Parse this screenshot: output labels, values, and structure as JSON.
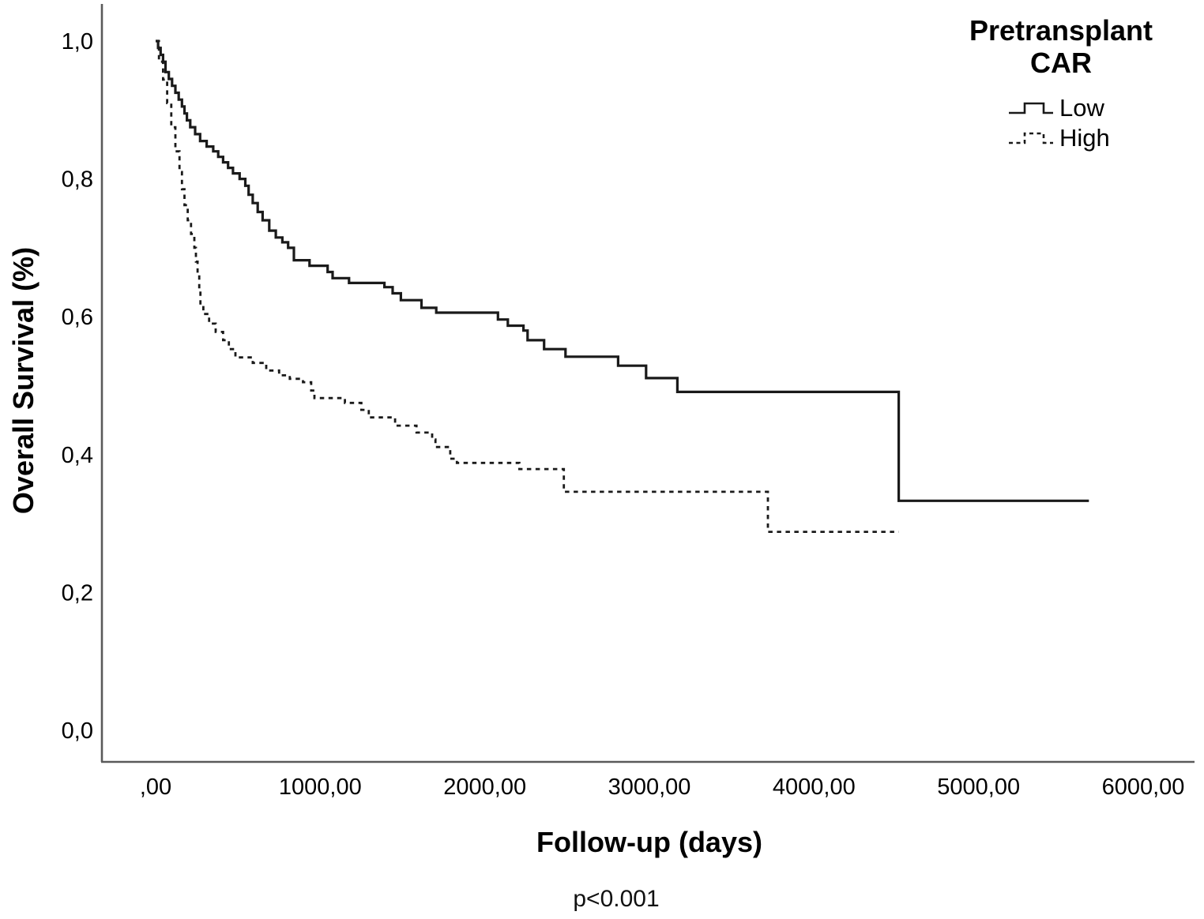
{
  "figure": {
    "background": "#ffffff",
    "axis_color": "#5a5a5a",
    "curve_color": "#1a1a1a",
    "legend": {
      "title_line1": "Pretransplant",
      "title_line2": "CAR"
    }
  },
  "chart_data": {
    "type": "line",
    "subtype": "kaplan_meier_step",
    "title": "",
    "xlabel": "Follow-up (days)",
    "ylabel": "Overall Survival (%)",
    "annotation": "p<0.001",
    "xlim": [
      0,
      6000
    ],
    "ylim": [
      0.0,
      1.0
    ],
    "grid": false,
    "legend_position": "top-right",
    "legend_title": "Pretransplant CAR",
    "x_ticks": {
      "values": [
        0,
        1000,
        2000,
        3000,
        4000,
        5000,
        6000
      ],
      "labels": [
        ",00",
        "1000,00",
        "2000,00",
        "3000,00",
        "4000,00",
        "5000,00",
        "6000,00"
      ]
    },
    "y_ticks": {
      "values": [
        0.0,
        0.2,
        0.4,
        0.6,
        0.8,
        1.0
      ],
      "labels": [
        "0,0",
        "0,2",
        "0,4",
        "0,6",
        "0,8",
        "1,0"
      ]
    },
    "series": [
      {
        "name": "Low",
        "line_style": "solid",
        "color": "#1a1a1a",
        "end_day": 5670,
        "points": [
          [
            0,
            1.0
          ],
          [
            15,
            0.99
          ],
          [
            30,
            0.98
          ],
          [
            45,
            0.97
          ],
          [
            60,
            0.955
          ],
          [
            80,
            0.945
          ],
          [
            100,
            0.935
          ],
          [
            120,
            0.925
          ],
          [
            140,
            0.915
          ],
          [
            160,
            0.905
          ],
          [
            175,
            0.895
          ],
          [
            190,
            0.885
          ],
          [
            210,
            0.875
          ],
          [
            240,
            0.865
          ],
          [
            270,
            0.855
          ],
          [
            310,
            0.847
          ],
          [
            350,
            0.84
          ],
          [
            380,
            0.832
          ],
          [
            410,
            0.824
          ],
          [
            440,
            0.816
          ],
          [
            470,
            0.808
          ],
          [
            510,
            0.8
          ],
          [
            545,
            0.79
          ],
          [
            565,
            0.777
          ],
          [
            590,
            0.765
          ],
          [
            620,
            0.752
          ],
          [
            650,
            0.74
          ],
          [
            690,
            0.725
          ],
          [
            730,
            0.715
          ],
          [
            770,
            0.708
          ],
          [
            805,
            0.7
          ],
          [
            840,
            0.682
          ],
          [
            935,
            0.674
          ],
          [
            1045,
            0.665
          ],
          [
            1075,
            0.656
          ],
          [
            1175,
            0.649
          ],
          [
            1390,
            0.643
          ],
          [
            1440,
            0.634
          ],
          [
            1490,
            0.624
          ],
          [
            1615,
            0.613
          ],
          [
            1705,
            0.606
          ],
          [
            2080,
            0.596
          ],
          [
            2140,
            0.587
          ],
          [
            2235,
            0.58
          ],
          [
            2260,
            0.566
          ],
          [
            2360,
            0.553
          ],
          [
            2490,
            0.542
          ],
          [
            2810,
            0.529
          ],
          [
            2980,
            0.511
          ],
          [
            3170,
            0.491
          ],
          [
            4515,
            0.333
          ]
        ]
      },
      {
        "name": "High",
        "line_style": "dashed",
        "color": "#1a1a1a",
        "end_day": 4515,
        "points": [
          [
            0,
            1.0
          ],
          [
            20,
            0.97
          ],
          [
            45,
            0.944
          ],
          [
            70,
            0.91
          ],
          [
            95,
            0.875
          ],
          [
            120,
            0.84
          ],
          [
            145,
            0.81
          ],
          [
            160,
            0.785
          ],
          [
            175,
            0.762
          ],
          [
            195,
            0.74
          ],
          [
            215,
            0.72
          ],
          [
            235,
            0.7
          ],
          [
            245,
            0.68
          ],
          [
            255,
            0.661
          ],
          [
            265,
            0.64
          ],
          [
            272,
            0.617
          ],
          [
            290,
            0.604
          ],
          [
            325,
            0.59
          ],
          [
            365,
            0.578
          ],
          [
            410,
            0.566
          ],
          [
            445,
            0.553
          ],
          [
            485,
            0.541
          ],
          [
            590,
            0.533
          ],
          [
            672,
            0.522
          ],
          [
            750,
            0.515
          ],
          [
            815,
            0.51
          ],
          [
            895,
            0.505
          ],
          [
            945,
            0.493
          ],
          [
            965,
            0.482
          ],
          [
            1150,
            0.475
          ],
          [
            1250,
            0.465
          ],
          [
            1295,
            0.454
          ],
          [
            1455,
            0.442
          ],
          [
            1585,
            0.432
          ],
          [
            1680,
            0.422
          ],
          [
            1700,
            0.411
          ],
          [
            1790,
            0.394
          ],
          [
            1830,
            0.388
          ],
          [
            2210,
            0.379
          ],
          [
            2480,
            0.346
          ],
          [
            3720,
            0.288
          ]
        ]
      }
    ]
  }
}
